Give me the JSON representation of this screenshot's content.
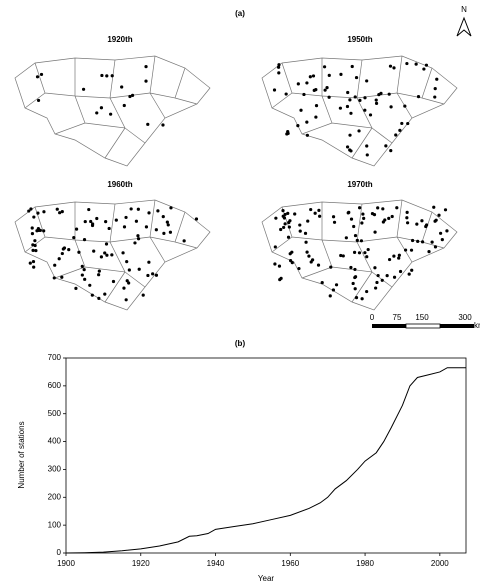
{
  "panel_a": {
    "label": "(a)",
    "north": "N",
    "maps": [
      {
        "title": "1920th"
      },
      {
        "title": "1950th"
      },
      {
        "title": "1960th"
      },
      {
        "title": "1970th"
      }
    ],
    "scale": {
      "labels": [
        "0",
        "75",
        "150",
        "300"
      ],
      "unit": "km"
    }
  },
  "chart_data": {
    "type": "line",
    "panel_label": "(b)",
    "x_label": "Year",
    "y_label": "Number of stations",
    "x": [
      1900,
      1905,
      1910,
      1915,
      1920,
      1925,
      1930,
      1933,
      1935,
      1938,
      1940,
      1945,
      1950,
      1955,
      1960,
      1965,
      1968,
      1970,
      1972,
      1975,
      1978,
      1980,
      1983,
      1985,
      1987,
      1990,
      1992,
      1994,
      1997,
      2000,
      2002,
      2007
    ],
    "values": [
      0,
      1,
      3,
      8,
      15,
      25,
      40,
      60,
      62,
      70,
      85,
      95,
      105,
      120,
      135,
      160,
      180,
      200,
      230,
      260,
      300,
      330,
      360,
      400,
      450,
      530,
      600,
      630,
      640,
      650,
      665,
      665
    ],
    "color": "#000000",
    "xlim": [
      1900,
      2007
    ],
    "ylim": [
      0,
      700
    ],
    "xticks": [
      1900,
      1920,
      1940,
      1960,
      1980,
      2000
    ],
    "yticks": [
      0,
      100,
      200,
      300,
      400,
      500,
      600,
      700
    ]
  }
}
